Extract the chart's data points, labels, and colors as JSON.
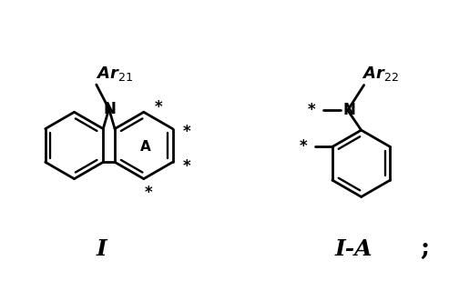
{
  "bg_color": "#ffffff",
  "line_color": "#000000",
  "lw": 2.0,
  "fig_width": 4.93,
  "fig_height": 3.09,
  "dpi": 100,
  "label_I": "I",
  "label_IA": "I-A",
  "semicolon": ";",
  "Ar21": "Ar",
  "Ar21_sub": "21",
  "Ar22": "Ar",
  "Ar22_sub": "22",
  "N_label": "N",
  "A_label": "A",
  "star": "*",
  "r_hex": 35
}
